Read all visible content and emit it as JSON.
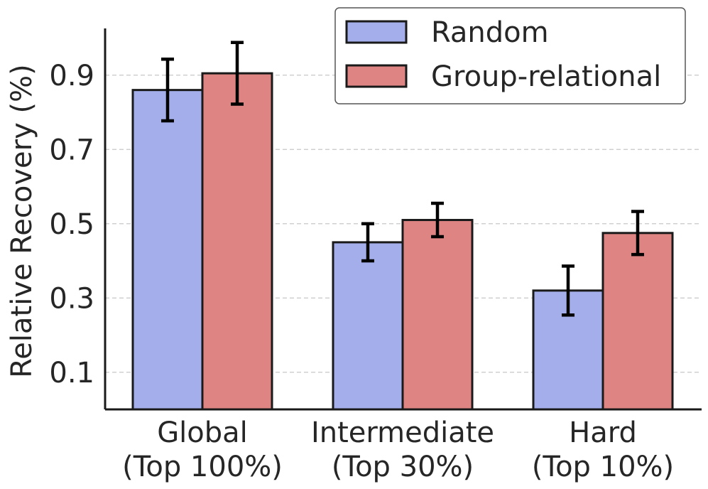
{
  "chart_data": {
    "type": "bar",
    "title": "",
    "xlabel": "",
    "ylabel": "Relative Recovery (%)",
    "ylim": [
      0.0,
      1.02
    ],
    "yticks": [
      0.1,
      0.3,
      0.5,
      0.7,
      0.9
    ],
    "ytick_labels": [
      "0.1",
      "0.3",
      "0.5",
      "0.7",
      "0.9"
    ],
    "grid": "y-dashed",
    "categories": [
      [
        "Global",
        "(Top 100%)"
      ],
      [
        "Intermediate",
        "(Top 30%)"
      ],
      [
        "Hard",
        "(Top 10%)"
      ]
    ],
    "series": [
      {
        "name": "Random",
        "color": "#a3aeea",
        "values": [
          0.86,
          0.45,
          0.32
        ],
        "errors": [
          0.083,
          0.05,
          0.066
        ]
      },
      {
        "name": "Group-relational",
        "color": "#de8584",
        "values": [
          0.905,
          0.51,
          0.475
        ],
        "errors": [
          0.083,
          0.045,
          0.058
        ]
      }
    ],
    "legend": {
      "position": "top-right"
    }
  }
}
